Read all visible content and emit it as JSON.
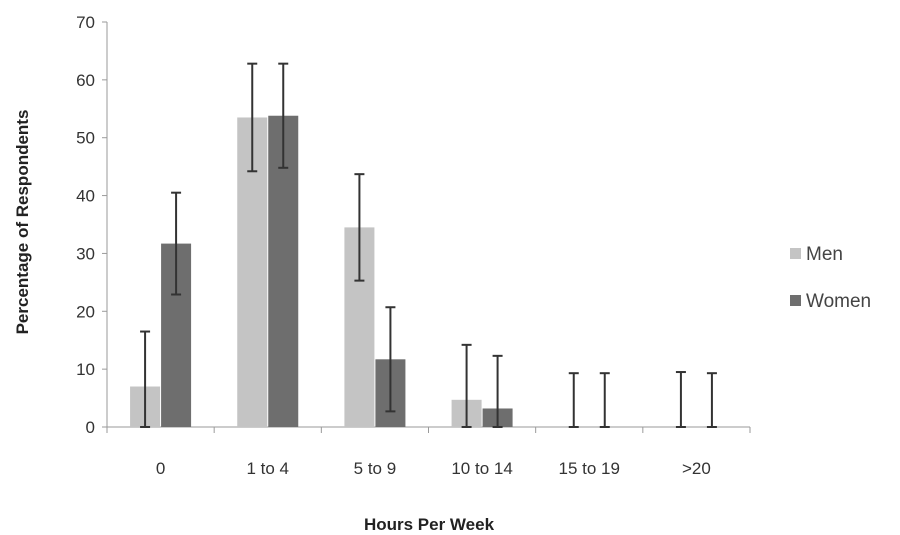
{
  "chart_data": {
    "type": "bar",
    "title": "",
    "xlabel": "Hours Per Week",
    "ylabel": "Percentage of Respondents",
    "categories": [
      "0",
      "1 to 4",
      "5 to 9",
      "10 to 14",
      "15 to 19",
      ">20"
    ],
    "ylim": [
      0,
      70
    ],
    "yticks": [
      "0",
      "10",
      "20",
      "30",
      "40",
      "50",
      "60",
      "70"
    ],
    "grid": false,
    "legend_position": "right",
    "series": [
      {
        "name": "Men",
        "color": "#c4c4c4",
        "values": [
          7,
          53.5,
          34.5,
          4.7,
          0,
          0
        ],
        "error": [
          9.5,
          9.3,
          9.2,
          9.5,
          9.3,
          9.5
        ]
      },
      {
        "name": "Women",
        "color": "#6e6e6e",
        "values": [
          31.7,
          53.8,
          11.7,
          3.2,
          0,
          0
        ],
        "error": [
          8.8,
          9.0,
          9.0,
          9.1,
          9.3,
          9.3
        ]
      }
    ]
  }
}
